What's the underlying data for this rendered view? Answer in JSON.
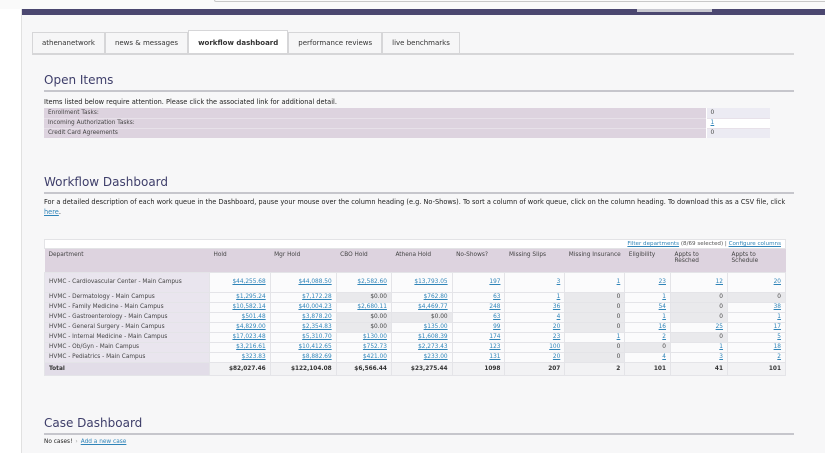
{
  "tabs": [
    {
      "label": "athenanetwork",
      "active": false
    },
    {
      "label": "news & messages",
      "active": false
    },
    {
      "label": "workflow dashboard",
      "active": true
    },
    {
      "label": "performance reviews",
      "active": false
    },
    {
      "label": "live benchmarks",
      "active": false
    }
  ],
  "open_items": {
    "title": "Open Items",
    "description": "Items listed below require attention. Please click the associated link for additional detail.",
    "rows": [
      {
        "label": "Enrollment Tasks:",
        "value": "0"
      },
      {
        "label": "Incoming Authorization Tasks:",
        "value": "1"
      },
      {
        "label": "Credit Card Agreements",
        "value": "0"
      }
    ]
  },
  "workflow": {
    "title": "Workflow Dashboard",
    "description_1": "For a detailed description of each work queue in the Dashboard, pause your mouse over the column heading (e.g. No-Shows). To sort a column of work queue, click on the column heading. To download this as a CSV file, click ",
    "here_link": "here",
    "description_end": ".",
    "filter_link": "Filter departments",
    "filter_count": " (8/69 selected) | ",
    "configure_link": "Configure columns",
    "columns": [
      "Department",
      "Hold",
      "Mgr Hold",
      "CBO Hold",
      "Athena Hold",
      "No-Shows?",
      "Missing Slips",
      "Missing Insurance",
      "Eligibility",
      "Appts to Resched",
      "Appts to Schedule"
    ],
    "rows": [
      {
        "dept": "HVMC - Cardiovascular Center - Main Campus",
        "values": [
          "$44,255.68",
          "$44,088.50",
          "$2,582.60",
          "$13,793.05",
          "197",
          "3",
          "1",
          "23",
          "12",
          "20"
        ]
      },
      {
        "dept": "HVMC - Dermatology - Main Campus",
        "values": [
          "$1,295.24",
          "$7,172.28",
          "$0.00",
          "$762.80",
          "63",
          "1",
          "0",
          "1",
          "0",
          "0"
        ]
      },
      {
        "dept": "HVMC - Family Medicine - Main Campus",
        "values": [
          "$10,582.14",
          "$40,004.23",
          "$2,680.11",
          "$4,469.77",
          "248",
          "36",
          "0",
          "54",
          "0",
          "38"
        ]
      },
      {
        "dept": "HVMC - Gastroenterology - Main Campus",
        "values": [
          "$501.48",
          "$3,878.20",
          "$0.00",
          "$0.00",
          "63",
          "4",
          "0",
          "1",
          "0",
          "1"
        ]
      },
      {
        "dept": "HVMC - General Surgery - Main Campus",
        "values": [
          "$4,829.00",
          "$2,354.83",
          "$0.00",
          "$135.00",
          "99",
          "20",
          "0",
          "16",
          "25",
          "17"
        ]
      },
      {
        "dept": "HVMC - Internal Medicine - Main Campus",
        "values": [
          "$17,023.48",
          "$5,310.70",
          "$130.00",
          "$1,608.39",
          "174",
          "23",
          "1",
          "2",
          "0",
          "5"
        ]
      },
      {
        "dept": "HVMC - Ob/Gyn - Main Campus",
        "values": [
          "$3,216.61",
          "$10,412.65",
          "$752.73",
          "$2,273.43",
          "123",
          "100",
          "0",
          "0",
          "1",
          "18"
        ]
      },
      {
        "dept": "HVMC - Pediatrics - Main Campus",
        "values": [
          "$323.83",
          "$8,882.69",
          "$421.00",
          "$233.00",
          "131",
          "20",
          "0",
          "4",
          "3",
          "2"
        ]
      }
    ],
    "total": {
      "dept": "Total",
      "values": [
        "$82,027.46",
        "$122,104.08",
        "$6,566.44",
        "$23,275.44",
        "1098",
        "207",
        "2",
        "101",
        "41",
        "101"
      ]
    }
  },
  "case_dashboard": {
    "title": "Case Dashboard",
    "no_cases": "No cases!",
    "add_link": "Add a new case"
  },
  "colors": {
    "top_bar": "#4b4770",
    "section_title": "#3e3e6a",
    "link": "#2f84b8",
    "header_bg": "#ddd3df"
  }
}
